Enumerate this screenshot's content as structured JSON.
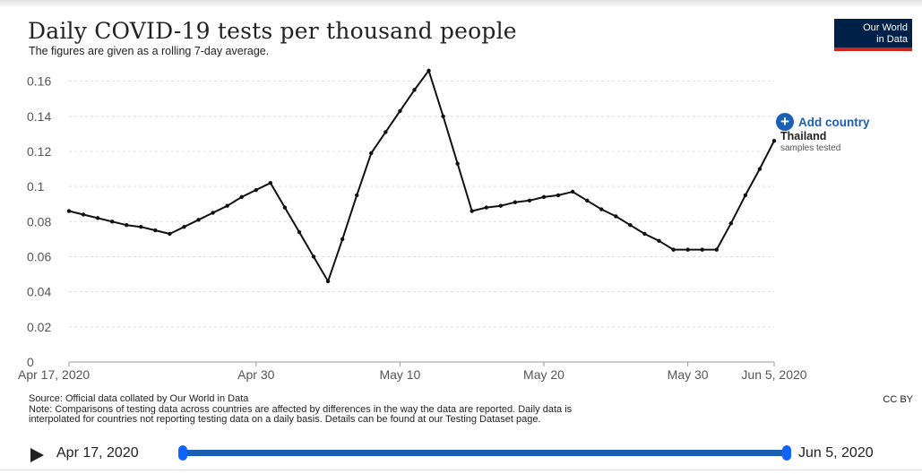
{
  "header": {
    "title": "Daily COVID-19 tests per thousand people",
    "subtitle": "The figures are given as a rolling 7-day average.",
    "logo_line1": "Our World",
    "logo_line2": "in Data"
  },
  "controls": {
    "add_country_label": "Add country"
  },
  "colors": {
    "line": "#111111",
    "accent": "#1a5fb4",
    "logo_bg": "#002147",
    "logo_bar": "#ce261e"
  },
  "chart_data": {
    "type": "line",
    "title": "Daily COVID-19 tests per thousand people",
    "xlabel": "",
    "ylabel": "",
    "ylim": [
      0,
      0.17
    ],
    "yticks": [
      0,
      0.02,
      0.04,
      0.06,
      0.08,
      0.1,
      0.12,
      0.14,
      0.16
    ],
    "ytick_labels": [
      "0",
      "0.02",
      "0.04",
      "0.06",
      "0.08",
      "0.1",
      "0.12",
      "0.14",
      "0.16"
    ],
    "xticks": [
      {
        "date": "2020-04-17",
        "label": "Apr 17, 2020"
      },
      {
        "date": "2020-04-30",
        "label": "Apr 30"
      },
      {
        "date": "2020-05-10",
        "label": "May 10"
      },
      {
        "date": "2020-05-20",
        "label": "May 20"
      },
      {
        "date": "2020-05-30",
        "label": "May 30"
      },
      {
        "date": "2020-06-05",
        "label": "Jun 5, 2020"
      }
    ],
    "grid": true,
    "series": [
      {
        "name": "Thailand",
        "sublabel": "samples tested",
        "x": [
          "2020-04-17",
          "2020-04-18",
          "2020-04-19",
          "2020-04-20",
          "2020-04-21",
          "2020-04-22",
          "2020-04-23",
          "2020-04-24",
          "2020-04-25",
          "2020-04-26",
          "2020-04-27",
          "2020-04-28",
          "2020-04-29",
          "2020-04-30",
          "2020-05-01",
          "2020-05-02",
          "2020-05-03",
          "2020-05-04",
          "2020-05-05",
          "2020-05-06",
          "2020-05-07",
          "2020-05-08",
          "2020-05-09",
          "2020-05-10",
          "2020-05-11",
          "2020-05-12",
          "2020-05-13",
          "2020-05-14",
          "2020-05-15",
          "2020-05-16",
          "2020-05-17",
          "2020-05-18",
          "2020-05-19",
          "2020-05-20",
          "2020-05-21",
          "2020-05-22",
          "2020-05-23",
          "2020-05-24",
          "2020-05-25",
          "2020-05-26",
          "2020-05-27",
          "2020-05-28",
          "2020-05-29",
          "2020-05-30",
          "2020-05-31",
          "2020-06-01",
          "2020-06-02",
          "2020-06-03",
          "2020-06-04",
          "2020-06-05"
        ],
        "values": [
          0.086,
          0.084,
          0.082,
          0.08,
          0.078,
          0.077,
          0.075,
          0.073,
          0.077,
          0.081,
          0.085,
          0.089,
          0.094,
          0.098,
          0.102,
          0.088,
          0.074,
          0.06,
          0.046,
          0.07,
          0.095,
          0.119,
          0.131,
          0.143,
          0.155,
          0.166,
          0.14,
          0.113,
          0.086,
          0.088,
          0.089,
          0.091,
          0.092,
          0.094,
          0.095,
          0.097,
          0.092,
          0.087,
          0.083,
          0.078,
          0.073,
          0.069,
          0.064,
          0.064,
          0.064,
          0.064,
          0.079,
          0.095,
          0.11,
          0.126
        ]
      }
    ]
  },
  "footer": {
    "source": "Source: Official data collated by Our World in Data",
    "note_line1": "Note: Comparisons of testing data across countries are affected by differences in the way the data are reported. Daily data is",
    "note_line2": "interpolated for countries not reporting testing data on a daily basis. Details can be found at our Testing Dataset page.",
    "license": "CC BY"
  },
  "timeline": {
    "start_label": "Apr 17, 2020",
    "end_label": "Jun 5, 2020"
  }
}
